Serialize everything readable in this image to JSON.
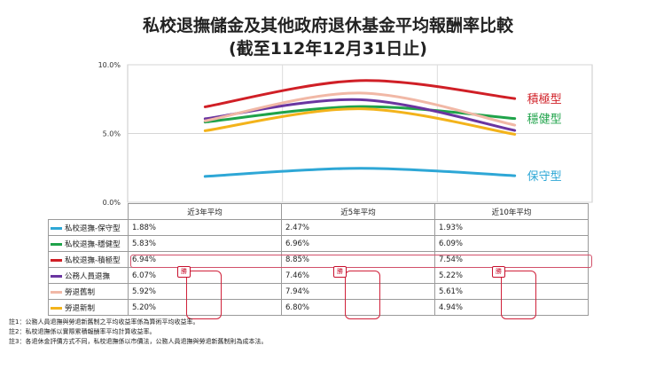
{
  "title_line1": "私校退撫儲金及其他政府退休基金平均報酬率比較",
  "title_line2": "(截至112年12月31日止)",
  "chart_data": {
    "type": "line",
    "categories": [
      "近3年平均",
      "近5年平均",
      "近10年平均"
    ],
    "ylim": [
      0,
      10
    ],
    "yticks": [
      "0.0%",
      "5.0%",
      "10.0%"
    ],
    "series": [
      {
        "name": "私校退撫-保守型",
        "label": "保守型",
        "color": "#2ea7d6",
        "values": [
          1.88,
          2.47,
          1.93
        ],
        "display": [
          "1.88%",
          "2.47%",
          "1.93%"
        ]
      },
      {
        "name": "私校退撫-穩健型",
        "label": "穩健型",
        "color": "#1fa34a",
        "values": [
          5.83,
          6.96,
          6.09
        ],
        "display": [
          "5.83%",
          "6.96%",
          "6.09%"
        ]
      },
      {
        "name": "私校退撫-積極型",
        "label": "積極型",
        "color": "#d01f26",
        "values": [
          6.94,
          8.85,
          7.54
        ],
        "display": [
          "6.94%",
          "8.85%",
          "7.54%"
        ]
      },
      {
        "name": "公務人員退撫",
        "label": "",
        "color": "#6a35a0",
        "values": [
          6.07,
          7.46,
          5.22
        ],
        "display": [
          "6.07%",
          "7.46%",
          "5.22%"
        ]
      },
      {
        "name": "勞退舊制",
        "label": "",
        "color": "#f1b8a6",
        "values": [
          5.92,
          7.94,
          5.61
        ],
        "display": [
          "5.92%",
          "7.94%",
          "5.61%"
        ]
      },
      {
        "name": "勞退新制",
        "label": "",
        "color": "#f3b31b",
        "values": [
          5.2,
          6.8,
          4.94
        ],
        "display": [
          "5.20%",
          "6.80%",
          "4.94%"
        ]
      }
    ]
  },
  "badge_text": "勝",
  "notes": [
    "註1：公務人員退撫與勞退新舊制之平均收益率係為算術平均收益率。",
    "註2：私校退撫係以實際累積報酬率平均計算收益率。",
    "註3：各退休金評價方式不同，私校退撫係以市價法，公務人員退撫與勞退新舊制則為成本法。"
  ]
}
